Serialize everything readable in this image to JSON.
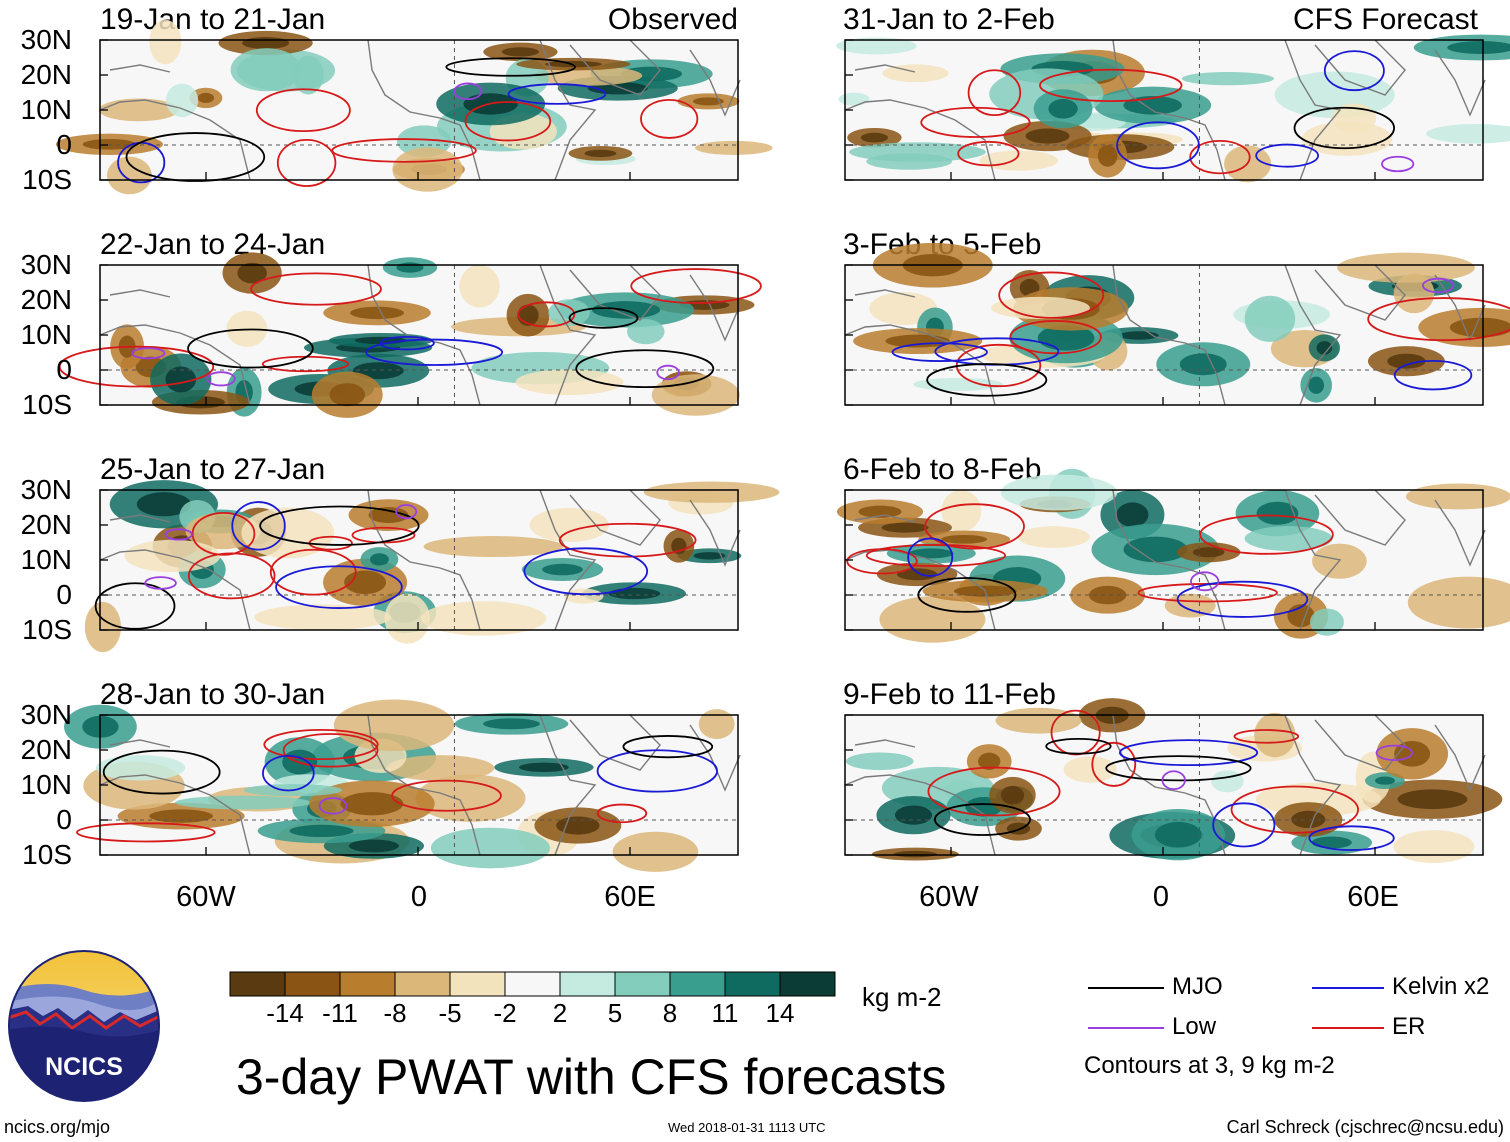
{
  "panels_left": [
    {
      "title": "19-Jan to 21-Jan",
      "tag": "Observed"
    },
    {
      "title": "22-Jan to 24-Jan",
      "tag": ""
    },
    {
      "title": "25-Jan to 27-Jan",
      "tag": ""
    },
    {
      "title": "28-Jan to 30-Jan",
      "tag": ""
    }
  ],
  "panels_right": [
    {
      "title": "31-Jan to 2-Feb",
      "tag": "CFS Forecast"
    },
    {
      "title": "3-Feb to 5-Feb",
      "tag": ""
    },
    {
      "title": "6-Feb to 8-Feb",
      "tag": ""
    },
    {
      "title": "9-Feb to 11-Feb",
      "tag": ""
    }
  ],
  "lat_labels": [
    "30N",
    "20N",
    "10N",
    "0",
    "10S"
  ],
  "lon_labels": [
    "60W",
    "0",
    "60E"
  ],
  "colorbar": {
    "labels": [
      "-14",
      "-11",
      "-8",
      "-5",
      "-2",
      "2",
      "5",
      "8",
      "11",
      "14"
    ],
    "colors": [
      "#5a3a10",
      "#8a5514",
      "#b97d2e",
      "#dcb77a",
      "#f3e3bd",
      "#f7f7f7",
      "#c5ebe1",
      "#82cdbc",
      "#3a9e8f",
      "#0f6b60",
      "#0b3c36"
    ],
    "unit": "kg m-2"
  },
  "legend": {
    "mjo": "MJO",
    "low": "Low",
    "kelvin": "Kelvin x2",
    "er": "ER",
    "note": "Contours at 3, 9 kg m-2",
    "mjo_color": "#000000",
    "low_color": "#9b3ee0",
    "kelvin_color": "#1a1ad6",
    "er_color": "#d61a1a"
  },
  "main_title": "3-day PWAT with CFS forecasts",
  "logo_text": "NCICS",
  "footer": {
    "left": "ncics.org/mjo",
    "center": "Wed 2018-01-31 1113 UTC",
    "right": "Carl Schreck (cjschrec@ncsu.edu)"
  }
}
